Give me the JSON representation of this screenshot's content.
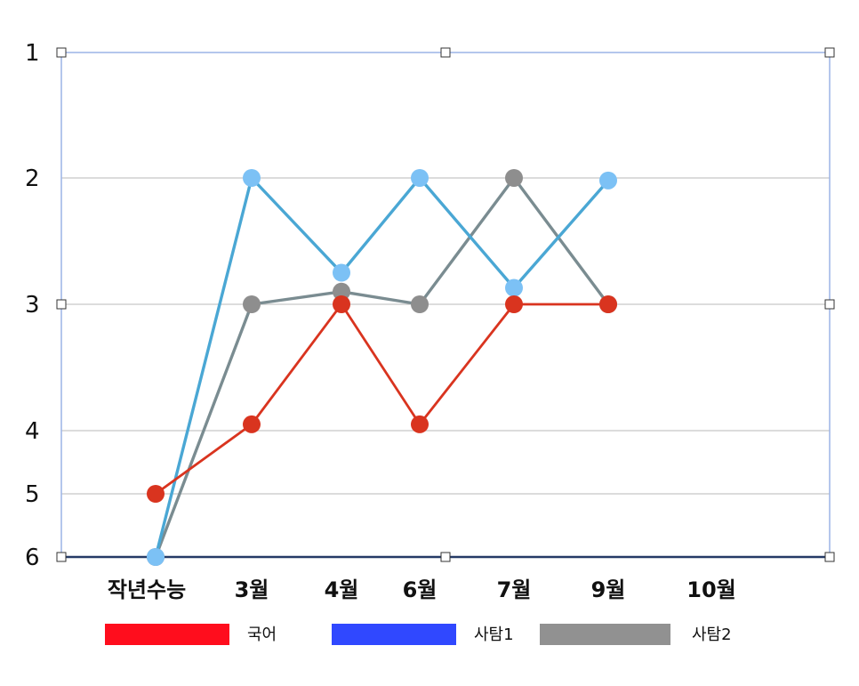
{
  "chart_data": {
    "type": "line",
    "title": "",
    "xlabel": "",
    "ylabel": "",
    "categories": [
      "작년수능",
      "3월",
      "4월",
      "6월",
      "7월",
      "9월",
      "10월"
    ],
    "y_ticks": [
      "1",
      "2",
      "3",
      "4",
      "5",
      "6"
    ],
    "ylim": [
      1,
      6
    ],
    "y_inverted": true,
    "grid": true,
    "legend_position": "bottom",
    "series": [
      {
        "name": "국어",
        "color": "#d9341f",
        "legend_color": "#ff0d1d",
        "values": [
          5.0,
          3.95,
          3.0,
          3.95,
          3.0,
          3.0,
          null
        ]
      },
      {
        "name": "사탐1",
        "color": "#4aa7d4",
        "legend_color": "#3048ff",
        "marker_color": "#7cc1f5",
        "values": [
          6.0,
          2.0,
          2.75,
          2.0,
          2.87,
          2.02,
          null
        ]
      },
      {
        "name": "사탐2",
        "color": "#7a8c91",
        "legend_color": "#919191",
        "marker_color": "#8e8e8e",
        "values": [
          6.0,
          3.0,
          2.9,
          3.0,
          2.0,
          3.0,
          null
        ]
      }
    ]
  }
}
